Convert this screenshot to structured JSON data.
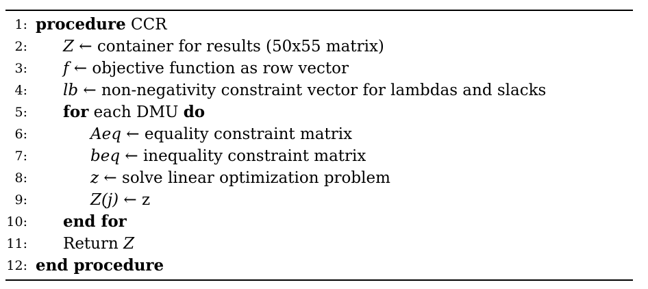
{
  "lines": [
    {
      "num": "1:",
      "parts": [
        {
          "t": "procedure",
          "s": "kw"
        },
        {
          "t": " CCR",
          "s": ""
        }
      ],
      "indent": 0
    },
    {
      "num": "2:",
      "parts": [
        {
          "t": "Z",
          "s": "mi"
        },
        {
          "t": " ← container for results (50x55 matrix)",
          "s": ""
        }
      ],
      "indent": 1
    },
    {
      "num": "3:",
      "parts": [
        {
          "t": "f",
          "s": "mi"
        },
        {
          "t": " ← objective function as row vector",
          "s": ""
        }
      ],
      "indent": 1
    },
    {
      "num": "4:",
      "parts": [
        {
          "t": "lb",
          "s": "mi"
        },
        {
          "t": " ← non-negativity constraint vector for lambdas and slacks",
          "s": ""
        }
      ],
      "indent": 1
    },
    {
      "num": "5:",
      "parts": [
        {
          "t": "for",
          "s": "kw"
        },
        {
          "t": " each DMU ",
          "s": ""
        },
        {
          "t": "do",
          "s": "kw"
        }
      ],
      "indent": 1
    },
    {
      "num": "6:",
      "parts": [
        {
          "t": "Aeq",
          "s": "mi"
        },
        {
          "t": " ← equality constraint matrix",
          "s": ""
        }
      ],
      "indent": 2
    },
    {
      "num": "7:",
      "parts": [
        {
          "t": "beq",
          "s": "mi"
        },
        {
          "t": " ← inequality constraint matrix",
          "s": ""
        }
      ],
      "indent": 2
    },
    {
      "num": "8:",
      "parts": [
        {
          "t": "z",
          "s": "mi"
        },
        {
          "t": " ← solve linear optimization problem",
          "s": ""
        }
      ],
      "indent": 2
    },
    {
      "num": "9:",
      "parts": [
        {
          "t": "Z(j)",
          "s": "mi"
        },
        {
          "t": " ← z",
          "s": ""
        }
      ],
      "indent": 2
    },
    {
      "num": "10:",
      "parts": [
        {
          "t": "end for",
          "s": "kw"
        }
      ],
      "indent": 1
    },
    {
      "num": "11:",
      "parts": [
        {
          "t": "Return ",
          "s": ""
        },
        {
          "t": "Z",
          "s": "mi"
        }
      ],
      "indent": 1
    },
    {
      "num": "12:",
      "parts": [
        {
          "t": "end procedure",
          "s": "kw"
        }
      ],
      "indent": 0
    }
  ]
}
